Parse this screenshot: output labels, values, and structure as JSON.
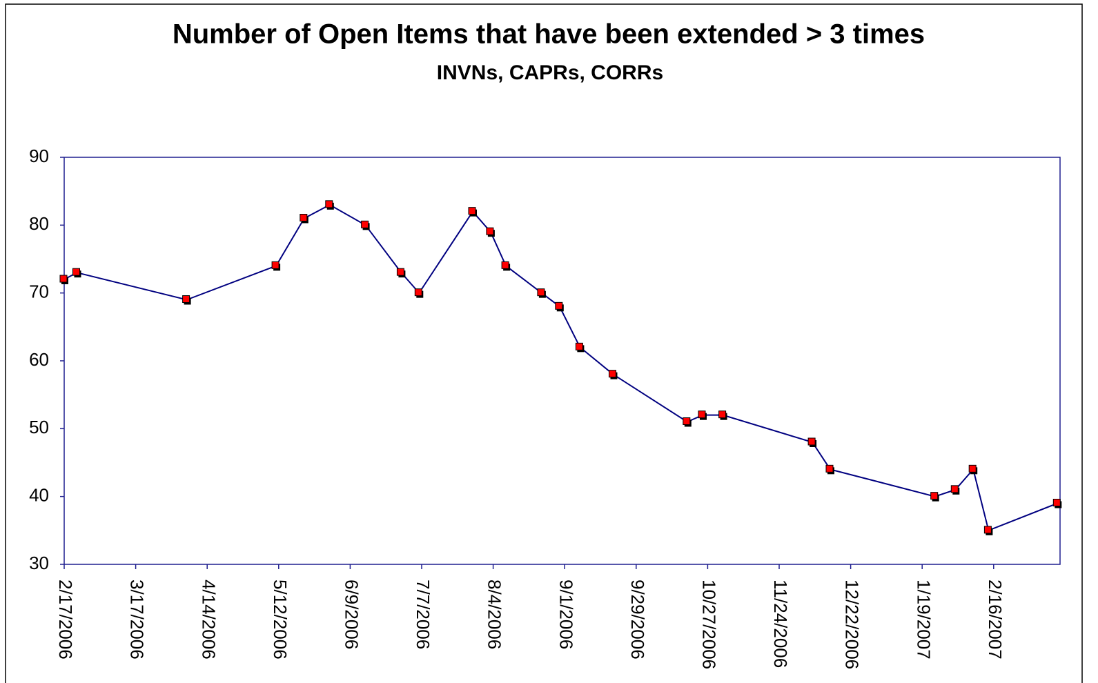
{
  "chart_data": {
    "type": "line",
    "title": "Number of Open Items that have been extended > 3 times",
    "subtitle": "INVNs, CAPRs, CORRs",
    "x": [
      "2006-02-17",
      "2006-02-22",
      "2006-04-06",
      "2006-05-11",
      "2006-05-22",
      "2006-06-01",
      "2006-06-15",
      "2006-06-29",
      "2006-07-06",
      "2006-07-27",
      "2006-08-03",
      "2006-08-09",
      "2006-08-23",
      "2006-08-30",
      "2006-09-07",
      "2006-09-20",
      "2006-10-19",
      "2006-10-25",
      "2006-11-02",
      "2006-12-07",
      "2006-12-14",
      "2007-01-24",
      "2007-02-01",
      "2007-02-08",
      "2007-02-14",
      "2007-03-13"
    ],
    "series": [
      {
        "color": "#000080",
        "marker_color": "#ff0000",
        "values": [
          72,
          73,
          69,
          74,
          81,
          83,
          80,
          73,
          70,
          82,
          79,
          74,
          70,
          68,
          62,
          58,
          51,
          52,
          52,
          48,
          44,
          40,
          41,
          44,
          35,
          39
        ]
      }
    ],
    "xlim": [
      "2006-02-17",
      "2007-03-14"
    ],
    "xticks": [
      {
        "value": "2006-02-17",
        "label": "2/17/2006"
      },
      {
        "value": "2006-03-17",
        "label": "3/17/2006"
      },
      {
        "value": "2006-04-14",
        "label": "4/14/2006"
      },
      {
        "value": "2006-05-12",
        "label": "5/12/2006"
      },
      {
        "value": "2006-06-09",
        "label": "6/9/2006"
      },
      {
        "value": "2006-07-07",
        "label": "7/7/2006"
      },
      {
        "value": "2006-08-04",
        "label": "8/4/2006"
      },
      {
        "value": "2006-09-01",
        "label": "9/1/2006"
      },
      {
        "value": "2006-09-29",
        "label": "9/29/2006"
      },
      {
        "value": "2006-10-27",
        "label": "10/27/2006"
      },
      {
        "value": "2006-11-24",
        "label": "11/24/2006"
      },
      {
        "value": "2006-12-22",
        "label": "12/22/2006"
      },
      {
        "value": "2007-01-19",
        "label": "1/19/2007"
      },
      {
        "value": "2007-02-16",
        "label": "2/16/2007"
      }
    ],
    "ylim": [
      30,
      90
    ],
    "yticks": [
      30,
      40,
      50,
      60,
      70,
      80,
      90
    ],
    "grid": false
  }
}
